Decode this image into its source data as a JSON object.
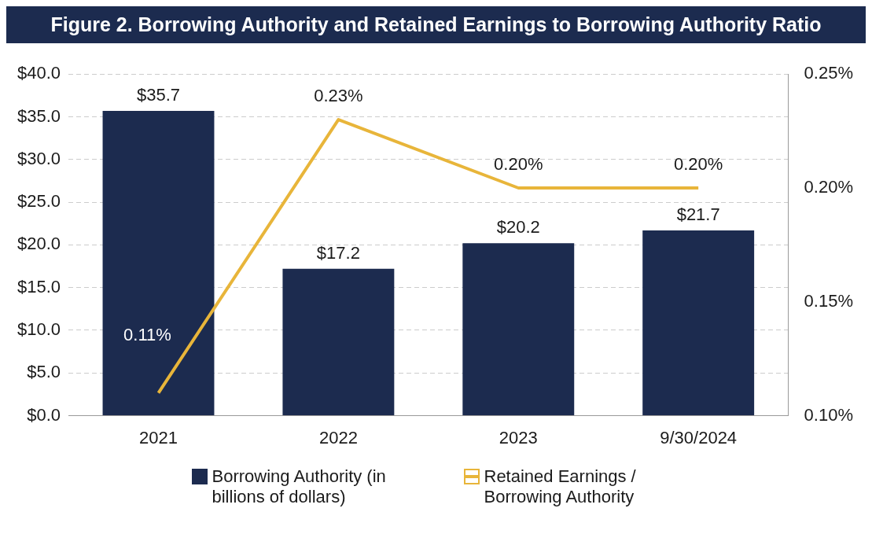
{
  "chart_data": {
    "type": "bar",
    "title": "Figure 2. Borrowing Authority and Retained Earnings to Borrowing Authority Ratio",
    "categories": [
      "2021",
      "2022",
      "2023",
      "9/30/2024"
    ],
    "series": [
      {
        "name": "Borrowing Authority (in billions of dollars)",
        "color": "#1c2b4f",
        "values": [
          35.7,
          17.2,
          20.2,
          21.7
        ],
        "value_labels": [
          "$35.7",
          "$17.2",
          "$20.2",
          "$21.7"
        ]
      },
      {
        "name": "Retained Earnings / Borrowing Authority",
        "type": "line",
        "axis": "y2",
        "color": "#e8b53a",
        "values": [
          0.11,
          0.23,
          0.2,
          0.2
        ],
        "value_labels": [
          "0.11%",
          "0.23%",
          "0.20%",
          "0.20%"
        ]
      }
    ],
    "ylim": [
      0,
      40
    ],
    "yticks": [
      {
        "value": 0,
        "label": "$0.0"
      },
      {
        "value": 5,
        "label": "$5.0"
      },
      {
        "value": 10,
        "label": "$10.0"
      },
      {
        "value": 15,
        "label": "$15.0"
      },
      {
        "value": 20,
        "label": "$20.0"
      },
      {
        "value": 25,
        "label": "$25.0"
      },
      {
        "value": 30,
        "label": "$30.0"
      },
      {
        "value": 35,
        "label": "$35.0"
      },
      {
        "value": 40,
        "label": "$40.0"
      }
    ],
    "y2lim": [
      0.1,
      0.25
    ],
    "y2ticks": [
      {
        "value": 0.1,
        "label": "0.10%"
      },
      {
        "value": 0.15,
        "label": "0.15%"
      },
      {
        "value": 0.2,
        "label": "0.20%"
      },
      {
        "value": 0.25,
        "label": "0.25%"
      }
    ],
    "grid": "y",
    "legend": "bottom",
    "marker": "none",
    "line_style": "solid"
  }
}
